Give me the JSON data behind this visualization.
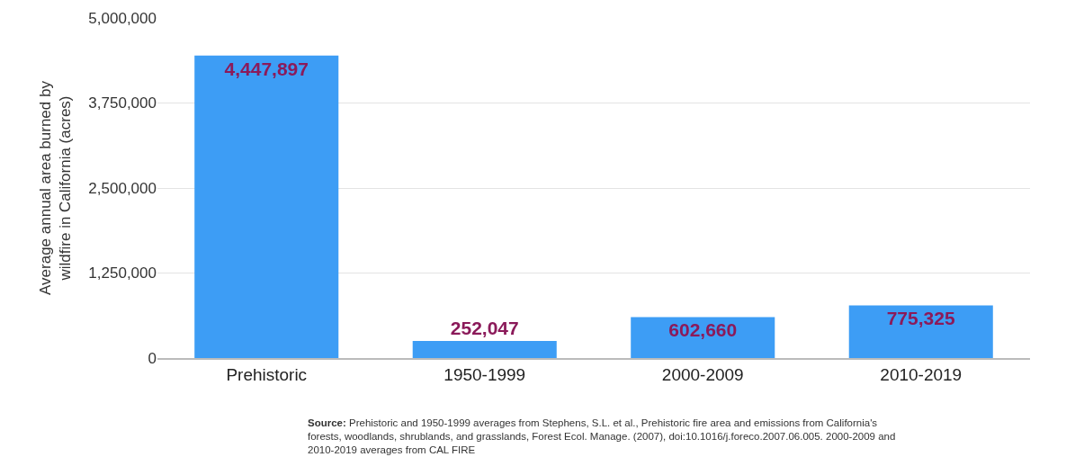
{
  "chart_data": {
    "type": "bar",
    "ylabel": "Average annual area burned by wildfire in California (acres)",
    "categories": [
      "Prehistoric",
      "1950-1999",
      "2000-2009",
      "2010-2019"
    ],
    "values": [
      4447897,
      252047,
      602660,
      775325
    ],
    "color": "#3d9df5",
    "ylim": [
      0,
      5000000
    ],
    "yticks": [
      {
        "value": 0,
        "label": "0"
      },
      {
        "value": 1250000,
        "label": "1,250,000"
      },
      {
        "value": 2500000,
        "label": "2,500,000"
      },
      {
        "value": 3750000,
        "label": "3,750,000"
      },
      {
        "value": 5000000,
        "label": "5,000,000"
      }
    ],
    "grid": "y",
    "value_labels": [
      "4,447,897",
      "252,047",
      "602,660",
      "775,325"
    ],
    "annotations": [
      "Source: Prehistoric and 1950-1999 averages from Stephens, S.L. et al., Prehistoric fire area and emissions from California's forests, woodlands, shrublands, and grasslands, Forest Ecol. Manage. (2007), doi:10.1016/j.foreco.2007.06.005. 2000-2009 and 2010-2019 averages from CAL FIRE"
    ]
  }
}
